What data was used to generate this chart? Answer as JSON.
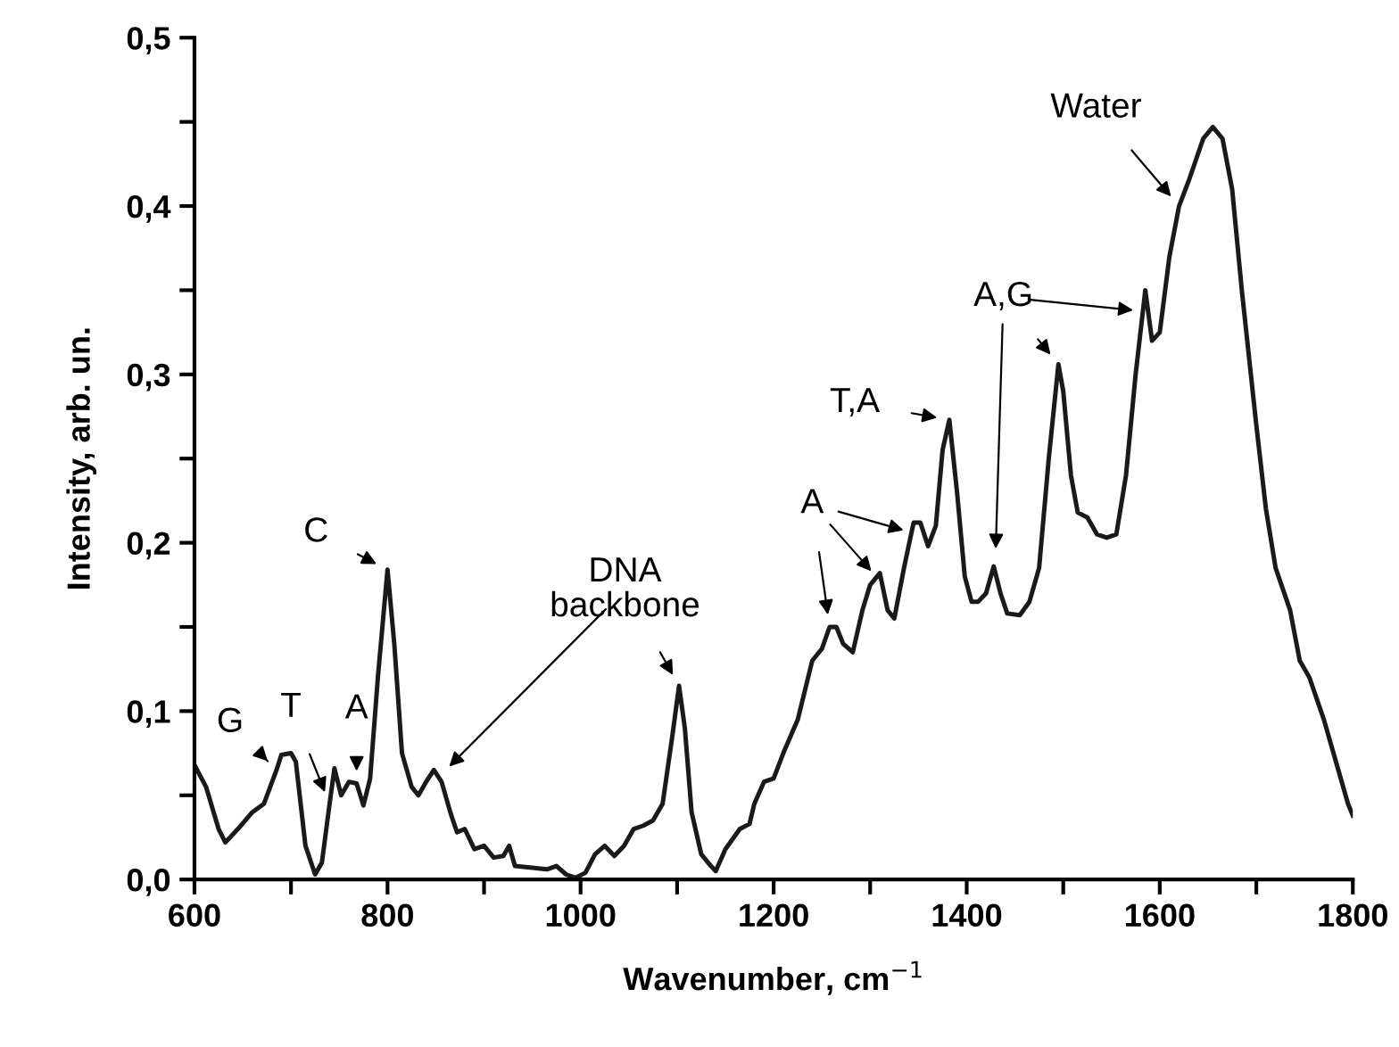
{
  "chart_data": {
    "type": "line",
    "xlabel": "Wavenumber, cm$^{−1}$",
    "ylabel": "Intensity, arb. un.",
    "xlim": [
      600,
      1800
    ],
    "ylim": [
      0,
      0.5
    ],
    "xticks": [
      600,
      {
        "value": 700,
        "label": null
      },
      800,
      {
        "value": 900,
        "label": null
      },
      1000,
      {
        "value": 1100,
        "label": null
      },
      1200,
      {
        "value": 1300,
        "label": null
      },
      1400,
      {
        "value": 1500,
        "label": null
      },
      1600,
      {
        "value": 1700,
        "label": null
      },
      1800
    ],
    "yticks": [
      {
        "value": 0,
        "label": "0,0"
      },
      {
        "value": 0.05,
        "label": null
      },
      {
        "value": 0.1,
        "label": "0,1"
      },
      {
        "value": 0.15,
        "label": null
      },
      {
        "value": 0.2,
        "label": "0,2"
      },
      {
        "value": 0.25,
        "label": null
      },
      {
        "value": 0.3,
        "label": "0,3"
      },
      {
        "value": 0.35,
        "label": null
      },
      {
        "value": 0.4,
        "label": "0,4"
      },
      {
        "value": 0.45,
        "label": null
      },
      {
        "value": 0.5,
        "label": "0,5"
      }
    ],
    "grid": false,
    "legend": false,
    "line_style": "solid",
    "marker": "none",
    "series": [
      {
        "color": "#1a1a1a",
        "x": [
          600,
          612,
          625,
          632,
          645,
          660,
          672,
          685,
          690,
          700,
          705,
          715,
          725,
          732,
          740,
          745,
          752,
          760,
          768,
          775,
          782,
          790,
          800,
          807,
          815,
          825,
          832,
          840,
          848,
          856,
          865,
          872,
          880,
          890,
          900,
          910,
          920,
          926,
          932,
          950,
          965,
          975,
          985,
          995,
          1005,
          1015,
          1025,
          1035,
          1045,
          1055,
          1065,
          1075,
          1085,
          1095,
          1102,
          1108,
          1115,
          1125,
          1135,
          1140,
          1150,
          1165,
          1175,
          1180,
          1190,
          1200,
          1210,
          1225,
          1240,
          1250,
          1258,
          1265,
          1272,
          1282,
          1292,
          1300,
          1310,
          1318,
          1325,
          1335,
          1345,
          1352,
          1360,
          1368,
          1375,
          1382,
          1390,
          1398,
          1405,
          1412,
          1420,
          1428,
          1435,
          1442,
          1455,
          1465,
          1475,
          1485,
          1495,
          1500,
          1508,
          1515,
          1525,
          1535,
          1545,
          1555,
          1565,
          1575,
          1585,
          1592,
          1600,
          1610,
          1620,
          1630,
          1645,
          1655,
          1665,
          1675,
          1685,
          1700,
          1710,
          1720,
          1735,
          1745,
          1755,
          1770,
          1785,
          1795,
          1800
        ],
        "values": [
          0.068,
          0.055,
          0.03,
          0.022,
          0.03,
          0.04,
          0.045,
          0.065,
          0.074,
          0.075,
          0.07,
          0.02,
          0.003,
          0.01,
          0.045,
          0.066,
          0.05,
          0.058,
          0.057,
          0.044,
          0.06,
          0.12,
          0.184,
          0.14,
          0.075,
          0.055,
          0.05,
          0.058,
          0.065,
          0.058,
          0.04,
          0.028,
          0.03,
          0.018,
          0.02,
          0.013,
          0.014,
          0.02,
          0.008,
          0.007,
          0.006,
          0.008,
          0.003,
          0.001,
          0.004,
          0.015,
          0.02,
          0.014,
          0.02,
          0.03,
          0.032,
          0.035,
          0.045,
          0.085,
          0.115,
          0.09,
          0.04,
          0.015,
          0.008,
          0.005,
          0.018,
          0.03,
          0.033,
          0.045,
          0.058,
          0.06,
          0.075,
          0.095,
          0.13,
          0.137,
          0.15,
          0.15,
          0.14,
          0.135,
          0.16,
          0.175,
          0.182,
          0.16,
          0.155,
          0.185,
          0.212,
          0.212,
          0.198,
          0.21,
          0.255,
          0.273,
          0.23,
          0.18,
          0.165,
          0.165,
          0.17,
          0.186,
          0.17,
          0.158,
          0.157,
          0.165,
          0.185,
          0.25,
          0.306,
          0.29,
          0.24,
          0.218,
          0.215,
          0.205,
          0.203,
          0.205,
          0.24,
          0.3,
          0.35,
          0.32,
          0.325,
          0.37,
          0.4,
          0.415,
          0.44,
          0.447,
          0.44,
          0.41,
          0.35,
          0.27,
          0.22,
          0.185,
          0.16,
          0.13,
          0.12,
          0.095,
          0.065,
          0.045,
          0.038
        ]
      }
    ],
    "annotations": [
      {
        "text": "G",
        "x": 685,
        "y": 0.065
      },
      {
        "text": "T",
        "x": 740,
        "y": 0.045
      },
      {
        "text": "A",
        "x": 768,
        "y": 0.057
      },
      {
        "text": "C",
        "x": 800,
        "y": 0.184
      },
      {
        "text": "DNA\nbackbone",
        "x": 1102,
        "y": 0.115
      },
      {
        "text": "A",
        "x": 1258,
        "y": 0.15
      },
      {
        "text": "T,A",
        "x": 1382,
        "y": 0.273
      },
      {
        "text": "A,G",
        "x": 1495,
        "y": 0.306
      },
      {
        "text": "Water",
        "x": 1620,
        "y": 0.4
      }
    ]
  }
}
